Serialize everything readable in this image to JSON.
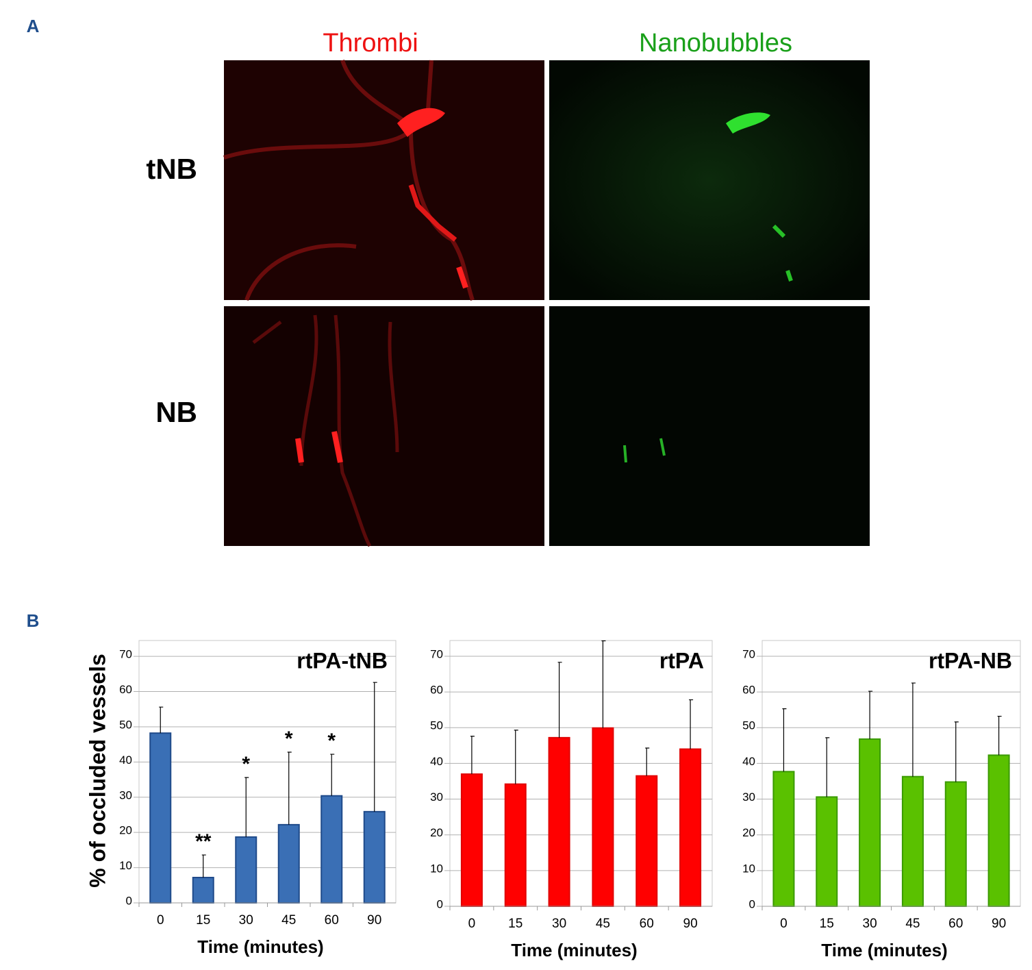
{
  "panel_a": {
    "label": "A",
    "columns": [
      "Thrombi",
      "Nanobubbles"
    ],
    "rows": [
      "tNB",
      "NB"
    ]
  },
  "panel_b_label": "B",
  "chart_data": [
    {
      "type": "bar",
      "title": "rtPA-tNB",
      "ylabel": "% of occluded vessels",
      "xlabel": "Time (minutes)",
      "categories": [
        "0",
        "15",
        "30",
        "45",
        "60",
        "90"
      ],
      "values": [
        48.2,
        7.2,
        18.7,
        22.2,
        30.4,
        25.9
      ],
      "errors": [
        7.4,
        6.4,
        16.9,
        20.6,
        11.8,
        36.7
      ],
      "annotations": [
        null,
        "**",
        "*",
        "*",
        "*",
        null
      ],
      "color": "#3a6fb5",
      "edgecolor": "#1f4a8a",
      "ylim": [
        0,
        74.5
      ],
      "yticks": [
        0,
        10,
        20,
        30,
        40,
        50,
        60,
        70
      ],
      "grid": true
    },
    {
      "type": "bar",
      "title": "rtPA",
      "xlabel": "Time (minutes)",
      "categories": [
        "0",
        "15",
        "30",
        "45",
        "60",
        "90"
      ],
      "values": [
        37.0,
        34.2,
        47.2,
        49.9,
        36.5,
        44.0
      ],
      "errors": [
        10.6,
        15.1,
        21.1,
        24.4,
        7.8,
        13.8
      ],
      "color": "#ff0000",
      "edgecolor": "#e00000",
      "ylim": [
        0,
        74.4
      ],
      "yticks": [
        0,
        10,
        20,
        30,
        40,
        50,
        60,
        70
      ],
      "grid": true
    },
    {
      "type": "bar",
      "title": "rtPA-NB",
      "xlabel": "Time (minutes)",
      "categories": [
        "0",
        "15",
        "30",
        "45",
        "60",
        "90"
      ],
      "values": [
        37.7,
        30.6,
        46.8,
        36.3,
        34.8,
        42.3
      ],
      "errors": [
        17.6,
        16.6,
        13.4,
        26.2,
        16.8,
        10.9
      ],
      "color": "#5ac100",
      "edgecolor": "#3a9a00",
      "ylim": [
        0,
        74.4
      ],
      "yticks": [
        0,
        10,
        20,
        30,
        40,
        50,
        60,
        70
      ],
      "grid": true
    }
  ]
}
